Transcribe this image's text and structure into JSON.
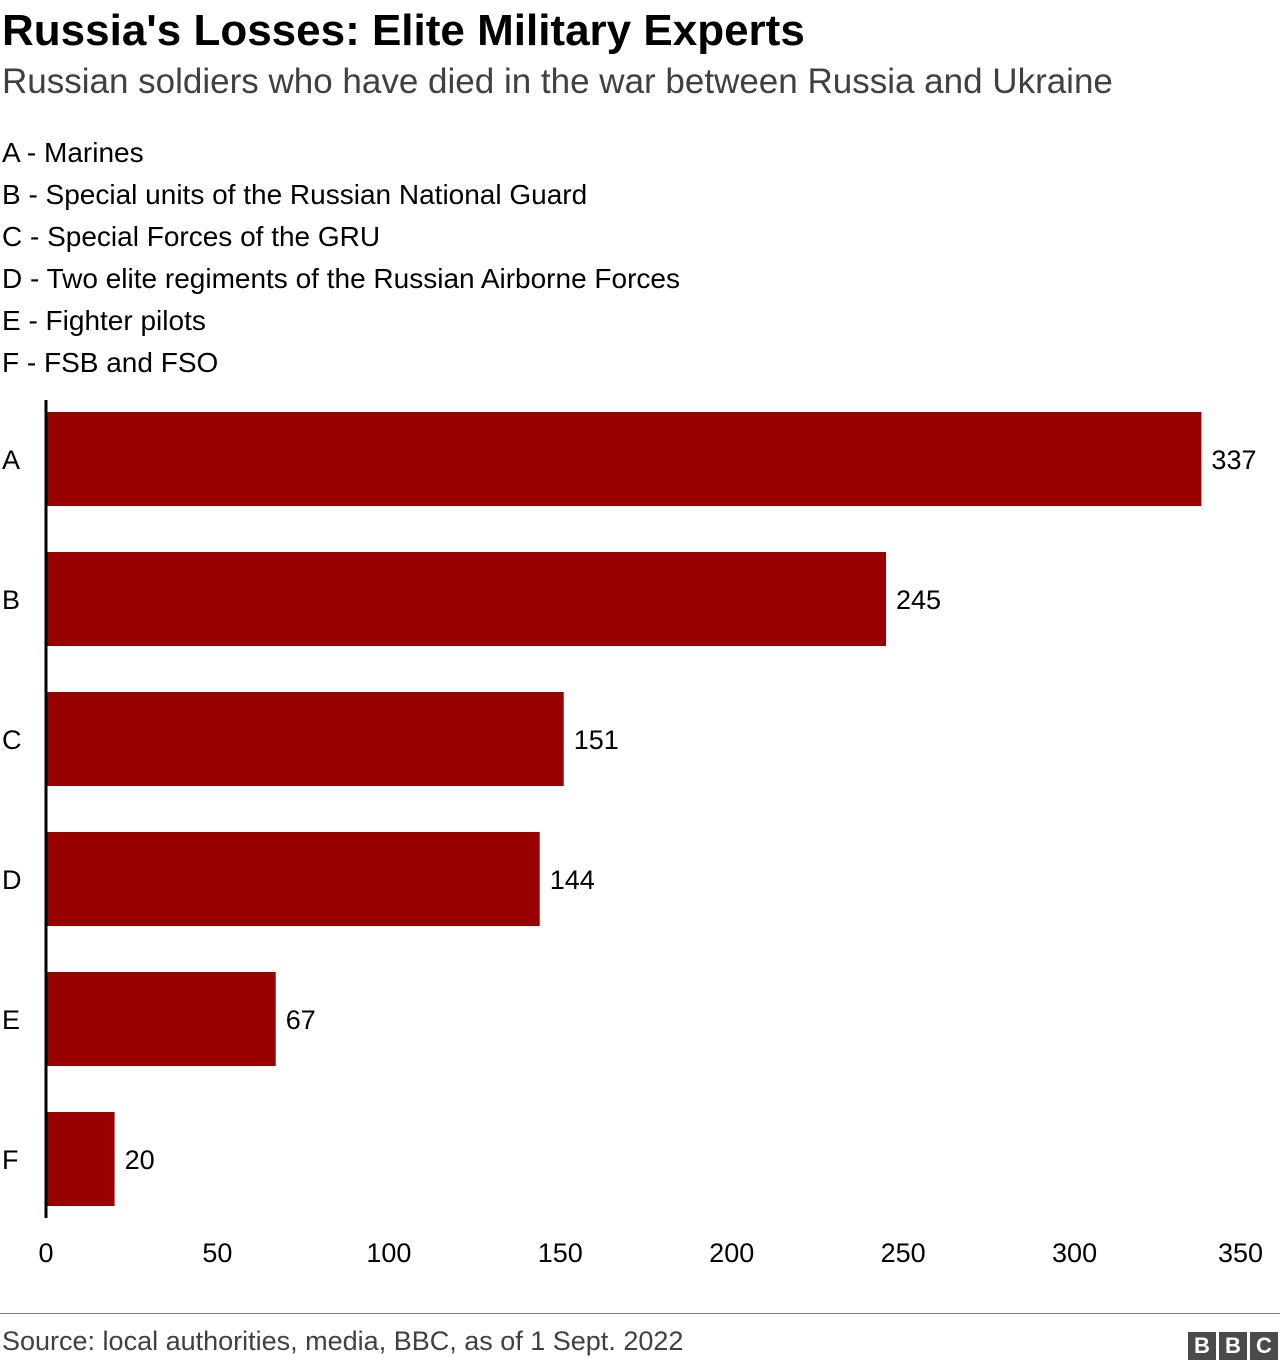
{
  "title": "Russia's Losses: Elite Military Experts",
  "subtitle": "Russian soldiers who have died in the war between Russia and Ukraine",
  "key": [
    "A - Marines",
    "B - Special units of the Russian National Guard",
    "C - Special Forces of the GRU",
    "D - Two elite regiments of the Russian Airborne Forces",
    "E - Fighter pilots",
    "F - FSB and FSO"
  ],
  "colors": {
    "bar": "#990000",
    "axis": "#000000"
  },
  "chart_data": {
    "type": "bar",
    "orientation": "horizontal",
    "categories": [
      "A",
      "B",
      "C",
      "D",
      "E",
      "F"
    ],
    "values": [
      337,
      245,
      151,
      144,
      67,
      20
    ],
    "xlim": [
      0,
      350
    ],
    "xticks": [
      0,
      50,
      100,
      150,
      200,
      250,
      300,
      350
    ],
    "data_labels": true,
    "grid": false
  },
  "source": "Source: local authorities, media, BBC, as of 1 Sept. 2022",
  "logo": [
    "B",
    "B",
    "C"
  ]
}
